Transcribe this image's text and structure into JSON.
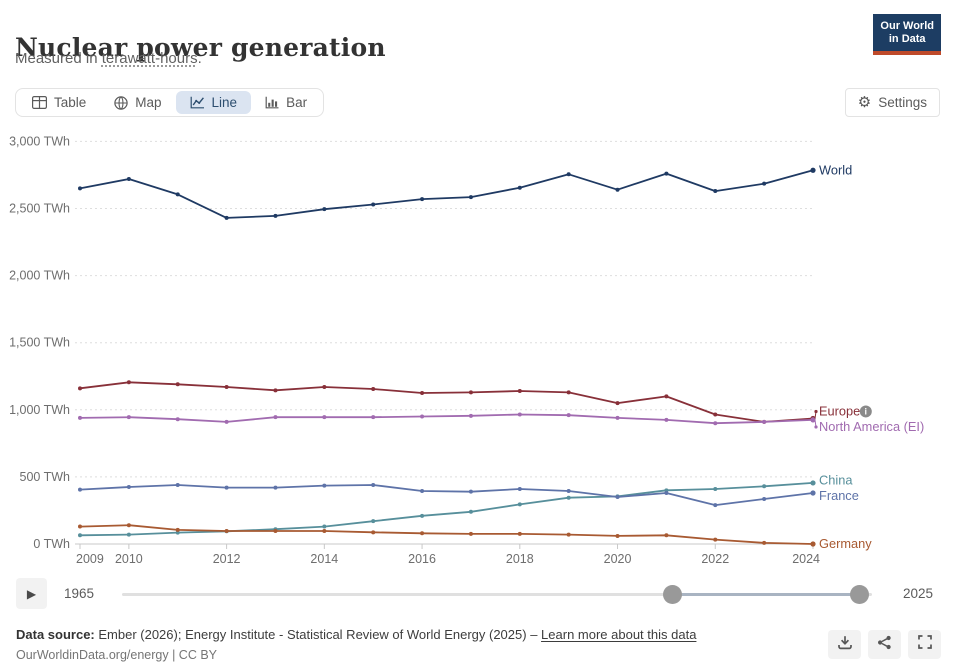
{
  "header": {
    "title": "Nuclear power generation",
    "subtitle_prefix": "Measured in ",
    "subtitle_link": "terawatt-hours",
    "subtitle_suffix": ".",
    "logo_line1": "Our World",
    "logo_line2": "in Data"
  },
  "tabs": [
    {
      "label": "Table",
      "active": false
    },
    {
      "label": "Map",
      "active": false
    },
    {
      "label": "Line",
      "active": true
    },
    {
      "label": "Bar",
      "active": false
    }
  ],
  "settings_label": "Settings",
  "icons": {
    "gear_glyph": "⚙",
    "play_glyph": "▶"
  },
  "chart_data": {
    "type": "line",
    "title": "Nuclear power generation",
    "unit": "TWh",
    "grid": true,
    "legend_position": "right-end-labels",
    "x": [
      2009,
      2010,
      2011,
      2012,
      2013,
      2014,
      2015,
      2016,
      2017,
      2018,
      2019,
      2020,
      2021,
      2022,
      2023,
      2024
    ],
    "x_tick_labels": [
      2009,
      2010,
      2012,
      2014,
      2016,
      2018,
      2020,
      2022,
      2024
    ],
    "ylim": [
      0,
      3000
    ],
    "y_ticks": [
      0,
      500,
      1000,
      1500,
      2000,
      2500,
      3000
    ],
    "y_tick_labels": [
      "0 TWh",
      "500 TWh",
      "1,000 TWh",
      "1,500 TWh",
      "2,000 TWh",
      "2,500 TWh",
      "3,000 TWh"
    ],
    "series": [
      {
        "name": "World",
        "color": "#1f3a63",
        "info_icon": false,
        "values": [
          2650,
          2720,
          2605,
          2430,
          2445,
          2495,
          2530,
          2570,
          2585,
          2655,
          2755,
          2640,
          2760,
          2630,
          2685,
          2785
        ]
      },
      {
        "name": "Europe",
        "color": "#883039",
        "info_icon": true,
        "values": [
          1160,
          1205,
          1190,
          1170,
          1145,
          1170,
          1155,
          1125,
          1130,
          1140,
          1130,
          1050,
          1100,
          965,
          910,
          935
        ]
      },
      {
        "name": "North America (EI)",
        "color": "#a16bb0",
        "info_icon": false,
        "values": [
          940,
          945,
          930,
          910,
          945,
          945,
          945,
          950,
          955,
          965,
          960,
          940,
          925,
          900,
          910,
          925
        ]
      },
      {
        "name": "China",
        "color": "#578f9b",
        "info_icon": false,
        "values": [
          65,
          70,
          85,
          95,
          110,
          130,
          170,
          210,
          240,
          295,
          345,
          355,
          400,
          410,
          430,
          455
        ]
      },
      {
        "name": "France",
        "color": "#5e73a8",
        "info_icon": false,
        "values": [
          405,
          425,
          440,
          420,
          420,
          435,
          440,
          395,
          390,
          410,
          395,
          350,
          380,
          290,
          335,
          380
        ]
      },
      {
        "name": "Germany",
        "color": "#a85a32",
        "info_icon": false,
        "values": [
          130,
          140,
          105,
          97,
          97,
          97,
          87,
          80,
          75,
          75,
          70,
          60,
          65,
          33,
          8,
          0
        ]
      }
    ]
  },
  "timeline": {
    "start_label": "1965",
    "end_label": "2025",
    "range_min": 1965,
    "range_max": 2025,
    "selected_start": 2009,
    "selected_end": 2024
  },
  "footer": {
    "source_label": "Data source:",
    "source_text": " Ember (2026); Energy Institute - Statistical Review of World Energy (2025) – ",
    "source_link": "Learn more about this data",
    "attribution": "OurWorldinData.org/energy | CC BY"
  }
}
